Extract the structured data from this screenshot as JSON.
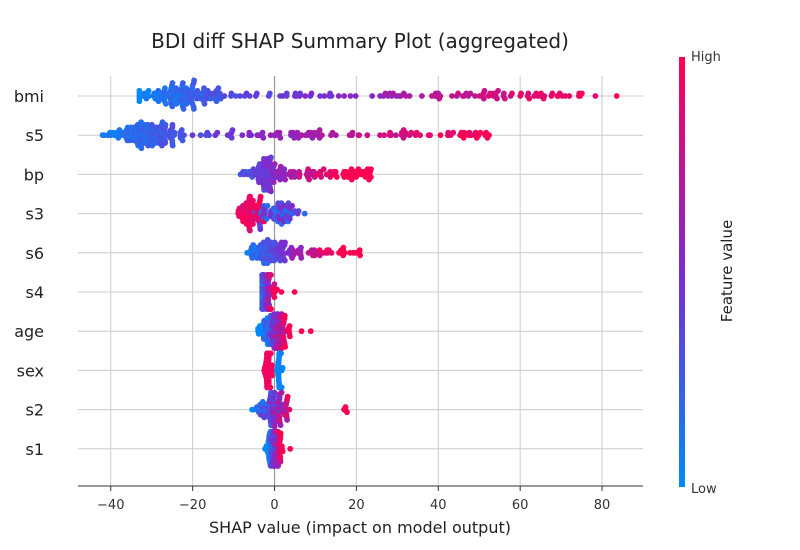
{
  "chart_data": {
    "type": "scatter",
    "subtype": "shap-beeswarm",
    "title": "BDI diff  SHAP Summary Plot (aggregated)",
    "xlabel": "SHAP value (impact on model output)",
    "xlim": [
      -48,
      90
    ],
    "xticks": [
      -40,
      -20,
      0,
      20,
      40,
      60,
      80
    ],
    "grid": true,
    "colormap": {
      "low": "#008afb",
      "mid": "#7b2cd0",
      "high": "#ff0052"
    },
    "colorbar": {
      "label": "Feature value",
      "high_label": "High",
      "low_label": "Low"
    },
    "features": [
      {
        "name": "bmi",
        "min": -33,
        "max": 84,
        "mode": "wide",
        "bulk": -23,
        "spread": 9,
        "n": 230
      },
      {
        "name": "s5",
        "min": -42,
        "max": 53,
        "mode": "wide",
        "bulk": -32,
        "spread": 7,
        "n": 230
      },
      {
        "name": "bp",
        "min": -16,
        "max": 24,
        "mode": "mid",
        "bulk": -3,
        "spread": 4,
        "n": 150
      },
      {
        "name": "s3",
        "min": -9,
        "max": 10,
        "mode": "inverse",
        "bulk": -6,
        "spread": 3,
        "n": 130
      },
      {
        "name": "s6",
        "min": -8,
        "max": 21,
        "mode": "mid",
        "bulk": -2,
        "spread": 3,
        "n": 120
      },
      {
        "name": "s4",
        "min": -3,
        "max": 6,
        "mode": "narrow",
        "bulk": -2,
        "spread": 1,
        "n": 90
      },
      {
        "name": "age",
        "min": -4,
        "max": 9,
        "mode": "narrow",
        "bulk": 0,
        "spread": 2,
        "n": 110
      },
      {
        "name": "sex",
        "min": -3,
        "max": 2,
        "mode": "binary",
        "bulk": 0,
        "spread": 1,
        "n": 90
      },
      {
        "name": "s2",
        "min": -7,
        "max": 19,
        "mode": "narrow",
        "bulk": 0,
        "spread": 2,
        "n": 90
      },
      {
        "name": "s1",
        "min": -3,
        "max": 4,
        "mode": "narrow",
        "bulk": 0,
        "spread": 1,
        "n": 90
      }
    ]
  }
}
